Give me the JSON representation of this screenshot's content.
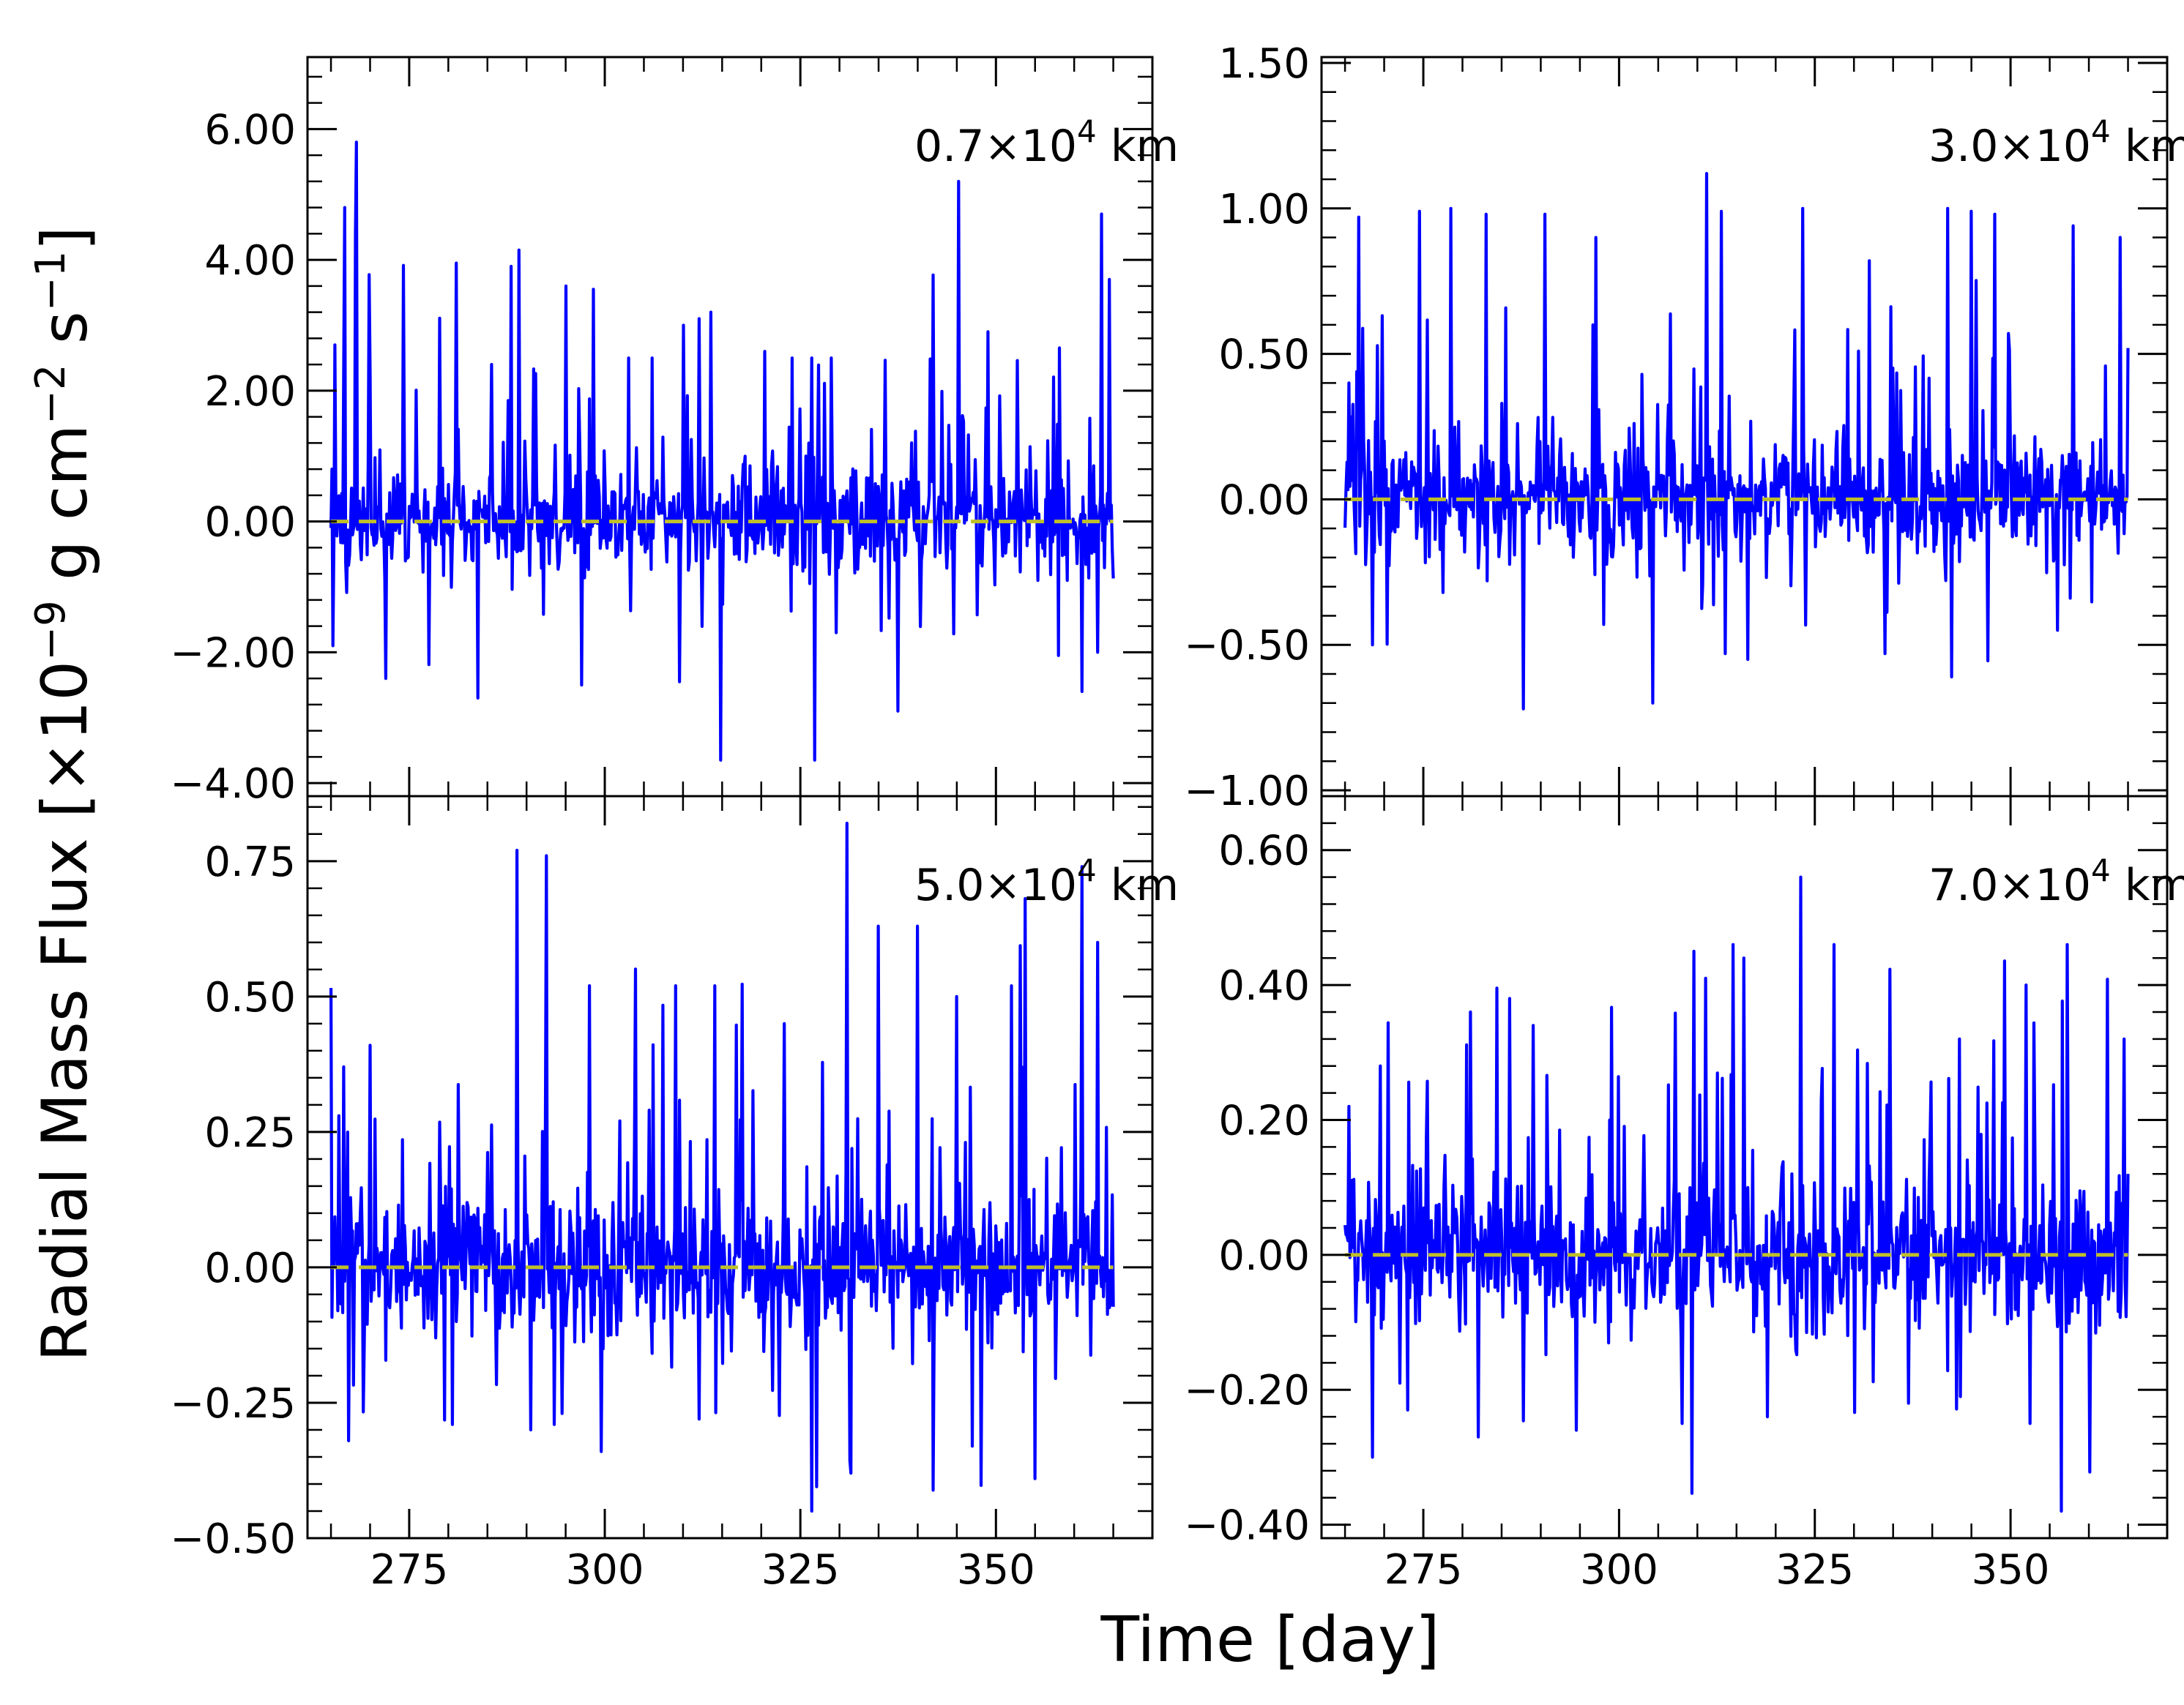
{
  "figure": {
    "xlabel": "Time [day]",
    "ylabel_main": "Radial Mass Flux [×10",
    "ylabel_exp1": "−9",
    "ylabel_unit1": " g cm",
    "ylabel_exp2": "−2",
    "ylabel_unit2": " s",
    "ylabel_exp3": "−1",
    "ylabel_end": "]",
    "colors": {
      "series": "#0000ff",
      "reference": "#bfbf2a",
      "axes": "#000000"
    }
  },
  "chart_data": [
    {
      "type": "line",
      "panel": "top-left",
      "annotation_main": "0.7×10",
      "annotation_exp": "4",
      "annotation_unit": " km",
      "xlim": [
        262,
        370
      ],
      "ylim": [
        -4.2,
        7.1
      ],
      "xticks": [
        275,
        300,
        325,
        350
      ],
      "xtick_labels": [
        "",
        "",
        "",
        ""
      ],
      "yticks": [
        -4,
        -2,
        0,
        2,
        4,
        6
      ],
      "ytick_labels": [
        "−4.00",
        "−2.00",
        "0.00",
        "2.00",
        "4.00",
        "6.00"
      ],
      "reference_y": 0,
      "series": [
        {
          "x_start": 265,
          "x_end": 365,
          "points": 800,
          "noise_sigma": 0.65,
          "seed": 11,
          "peaks": [
            [
              265.5,
              2.7
            ],
            [
              266.8,
              4.8
            ],
            [
              268.2,
              5.8
            ],
            [
              281,
              3.95
            ],
            [
              285.5,
              2.4
            ],
            [
              288,
              3.9
            ],
            [
              289,
              4.15
            ],
            [
              295,
              3.6
            ],
            [
              298.5,
              3.55
            ],
            [
              303,
              2.5
            ],
            [
              306,
              2.5
            ],
            [
              310,
              3.0
            ],
            [
              312,
              3.1
            ],
            [
              313.5,
              3.2
            ],
            [
              320.5,
              2.6
            ],
            [
              324,
              2.5
            ],
            [
              326.5,
              2.5
            ],
            [
              329,
              2.5
            ],
            [
              345.2,
              5.2
            ],
            [
              349,
              2.9
            ],
            [
              363.5,
              4.7
            ],
            [
              364.5,
              3.7
            ]
          ],
          "troughs": [
            [
              265.2,
              -1.9
            ],
            [
              272,
              -2.4
            ],
            [
              283.8,
              -2.7
            ],
            [
              297,
              -2.5
            ],
            [
              309.5,
              -2.45
            ],
            [
              314.8,
              -3.65
            ],
            [
              326.8,
              -3.65
            ],
            [
              337.5,
              -2.9
            ],
            [
              358,
              -2.05
            ],
            [
              361,
              -2.6
            ],
            [
              363,
              -2.0
            ]
          ]
        }
      ]
    },
    {
      "type": "line",
      "panel": "top-right",
      "annotation_main": "3.0×10",
      "annotation_exp": "4",
      "annotation_unit": " km",
      "xlim": [
        262,
        370
      ],
      "ylim": [
        -1.02,
        1.52
      ],
      "xticks": [
        275,
        300,
        325,
        350
      ],
      "xtick_labels": [
        "",
        "",
        "",
        ""
      ],
      "yticks": [
        -1.0,
        -0.5,
        0.0,
        0.5,
        1.0,
        1.5
      ],
      "ytick_labels": [
        "−1.00",
        "−0.50",
        "0.00",
        "0.50",
        "1.00",
        "1.50"
      ],
      "reference_y": 0,
      "series": [
        {
          "x_start": 265,
          "x_end": 365,
          "points": 800,
          "noise_sigma": 0.16,
          "seed": 23,
          "peaks": [
            [
              265.5,
              0.4
            ],
            [
              266.8,
              0.97
            ],
            [
              274.5,
              0.99
            ],
            [
              278.5,
              1.0
            ],
            [
              283,
              0.98
            ],
            [
              290.5,
              0.98
            ],
            [
              297,
              0.9
            ],
            [
              311.2,
              1.12
            ],
            [
              313,
              0.99
            ],
            [
              323.5,
              1.0
            ],
            [
              332,
              0.82
            ],
            [
              342,
              1.0
            ],
            [
              345,
              0.99
            ],
            [
              348,
              0.98
            ],
            [
              358,
              0.94
            ],
            [
              364,
              0.9
            ],
            [
              365,
              0.52
            ]
          ],
          "troughs": [
            [
              268.5,
              -0.5
            ],
            [
              277.5,
              -0.32
            ],
            [
              287.8,
              -0.72
            ],
            [
              298,
              -0.43
            ],
            [
              304.3,
              -0.7
            ],
            [
              313.5,
              -0.53
            ],
            [
              316.5,
              -0.55
            ],
            [
              334,
              -0.53
            ],
            [
              342.5,
              -0.61
            ],
            [
              356,
              -0.45
            ]
          ]
        }
      ]
    },
    {
      "type": "line",
      "panel": "bottom-left",
      "annotation_main": "5.0×10",
      "annotation_exp": "4",
      "annotation_unit": " km",
      "xlim": [
        262,
        370
      ],
      "ylim": [
        -0.5,
        0.87
      ],
      "xticks": [
        275,
        300,
        325,
        350
      ],
      "xtick_labels": [
        "275",
        "300",
        "325",
        "350"
      ],
      "yticks": [
        -0.5,
        -0.25,
        0.0,
        0.25,
        0.5,
        0.75
      ],
      "ytick_labels": [
        "−0.50",
        "−0.25",
        "0.00",
        "0.25",
        "0.50",
        "0.75"
      ],
      "reference_y": 0,
      "series": [
        {
          "x_start": 265,
          "x_end": 365,
          "points": 800,
          "noise_sigma": 0.11,
          "seed": 37,
          "peaks": [
            [
              266,
              0.28
            ],
            [
              270,
              0.41
            ],
            [
              288.8,
              0.77
            ],
            [
              292.5,
              0.76
            ],
            [
              298,
              0.52
            ],
            [
              309,
              0.52
            ],
            [
              314,
              0.52
            ],
            [
              323,
              0.45
            ],
            [
              331,
              0.82
            ],
            [
              335,
              0.63
            ],
            [
              340,
              0.63
            ],
            [
              345,
              0.5
            ],
            [
              352,
              0.52
            ],
            [
              361,
              0.74
            ],
            [
              363,
              0.6
            ]
          ],
          "troughs": [
            [
              267.2,
              -0.32
            ],
            [
              280.5,
              -0.29
            ],
            [
              290.5,
              -0.3
            ],
            [
              293.5,
              -0.29
            ],
            [
              299.5,
              -0.34
            ],
            [
              312,
              -0.28
            ],
            [
              326.5,
              -0.45
            ],
            [
              331.5,
              -0.38
            ],
            [
              347,
              -0.33
            ],
            [
              355,
              -0.39
            ]
          ]
        }
      ]
    },
    {
      "type": "line",
      "panel": "bottom-right",
      "annotation_main": "7.0×10",
      "annotation_exp": "4",
      "annotation_unit": " km",
      "xlim": [
        262,
        370
      ],
      "ylim": [
        -0.42,
        0.68
      ],
      "xticks": [
        275,
        300,
        325,
        350
      ],
      "xtick_labels": [
        "275",
        "300",
        "325",
        "350"
      ],
      "yticks": [
        -0.4,
        -0.2,
        0.0,
        0.2,
        0.4,
        0.6
      ],
      "ytick_labels": [
        "−0.40",
        "−0.20",
        "0.00",
        "0.20",
        "0.40",
        "0.60"
      ],
      "reference_y": 0,
      "series": [
        {
          "x_start": 265,
          "x_end": 365,
          "points": 800,
          "noise_sigma": 0.09,
          "seed": 53,
          "peaks": [
            [
              265.5,
              0.22
            ],
            [
              269.5,
              0.28
            ],
            [
              281,
              0.36
            ],
            [
              286,
              0.38
            ],
            [
              289,
              0.34
            ],
            [
              309.5,
              0.45
            ],
            [
              311,
              0.41
            ],
            [
              314.5,
              0.46
            ],
            [
              316,
              0.44
            ],
            [
              323.2,
              0.56
            ],
            [
              327.5,
              0.46
            ],
            [
              343.5,
              0.32
            ],
            [
              352,
              0.4
            ],
            [
              357.3,
              0.46
            ],
            [
              364.5,
              0.32
            ]
          ],
          "troughs": [
            [
              268.5,
              -0.3
            ],
            [
              273,
              -0.23
            ],
            [
              282,
              -0.27
            ],
            [
              294.5,
              -0.26
            ],
            [
              308,
              -0.25
            ],
            [
              319,
              -0.24
            ],
            [
              337,
              -0.22
            ],
            [
              352.5,
              -0.25
            ],
            [
              356.5,
              -0.38
            ]
          ]
        }
      ]
    }
  ]
}
